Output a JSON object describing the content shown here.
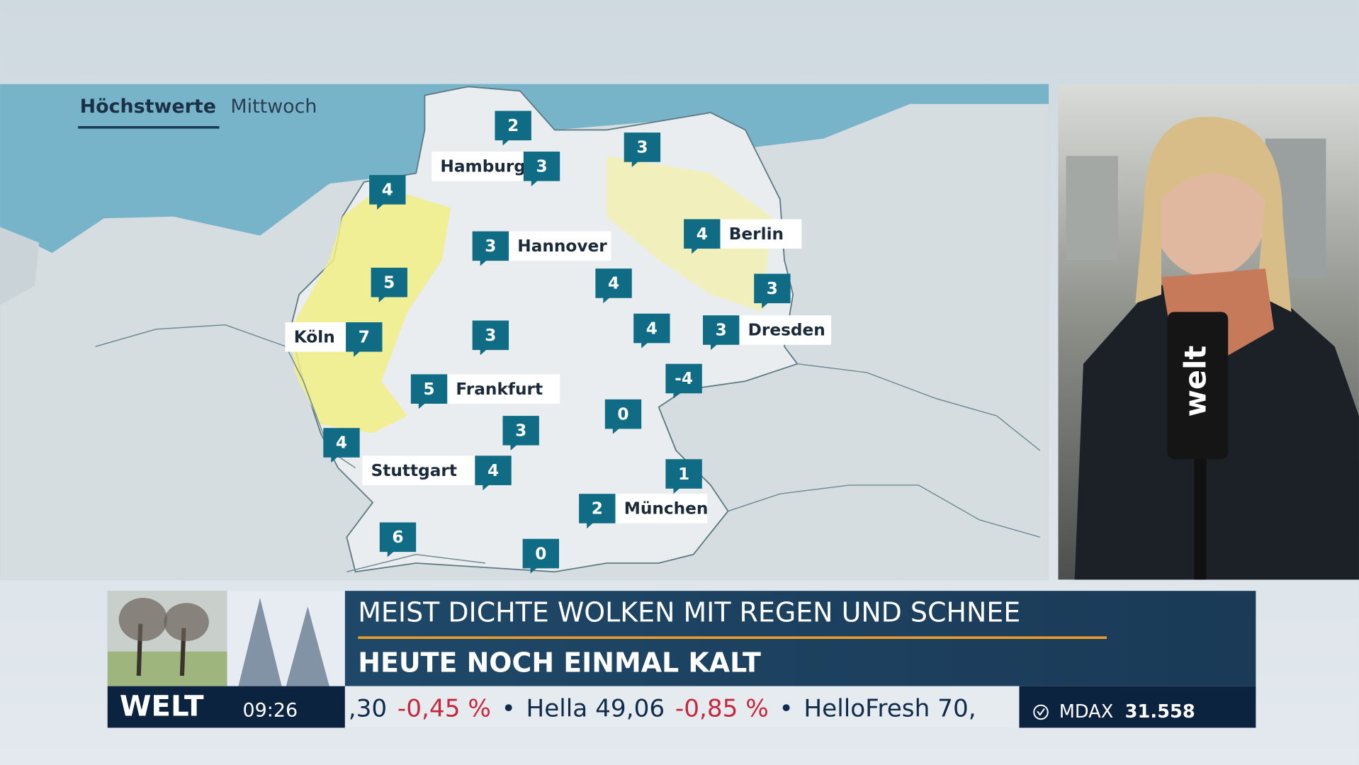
{
  "map": {
    "title": "Höchstwerte",
    "subtitle": "Mittwoch",
    "markers": [
      {
        "value": 2
      },
      {
        "city": "Hamburg",
        "value": 3
      },
      {
        "value": 3
      },
      {
        "value": 4
      },
      {
        "city": "Hannover",
        "value": 3
      },
      {
        "city": "Berlin",
        "value": 4
      },
      {
        "value": 5
      },
      {
        "value": 4
      },
      {
        "value": 3
      },
      {
        "city": "Köln",
        "value": 7
      },
      {
        "value": 3
      },
      {
        "value": 4
      },
      {
        "city": "Dresden",
        "value": 3
      },
      {
        "value": -4
      },
      {
        "city": "Frankfurt",
        "value": 5
      },
      {
        "value": 0
      },
      {
        "value": 3
      },
      {
        "value": 4
      },
      {
        "city": "Stuttgart",
        "value": 4
      },
      {
        "value": 1
      },
      {
        "city": "München",
        "value": 2
      },
      {
        "value": 6
      },
      {
        "value": 0
      }
    ]
  },
  "reporter": {
    "mic_flag": "welt"
  },
  "lower_third": {
    "headline": "MEIST DICHTE WOLKEN MIT REGEN UND SCHNEE",
    "subheadline": "HEUTE NOCH EINMAL KALT",
    "logo": "WELT",
    "time": "09:26",
    "ticker": [
      {
        "text": ",30",
        "color": "#0f2c4c"
      },
      {
        "text": "-0,45 %",
        "color": "#c8283e"
      },
      {
        "text": "•",
        "color": "#0f2c4c"
      },
      {
        "text": "Hella 49,06",
        "color": "#0f2c4c"
      },
      {
        "text": "-0,85 %",
        "color": "#c8283e"
      },
      {
        "text": "•",
        "color": "#0f2c4c"
      },
      {
        "text": "HelloFresh 70,",
        "color": "#0f2c4c"
      }
    ],
    "index": {
      "name": "MDAX",
      "value": "31.558"
    }
  }
}
